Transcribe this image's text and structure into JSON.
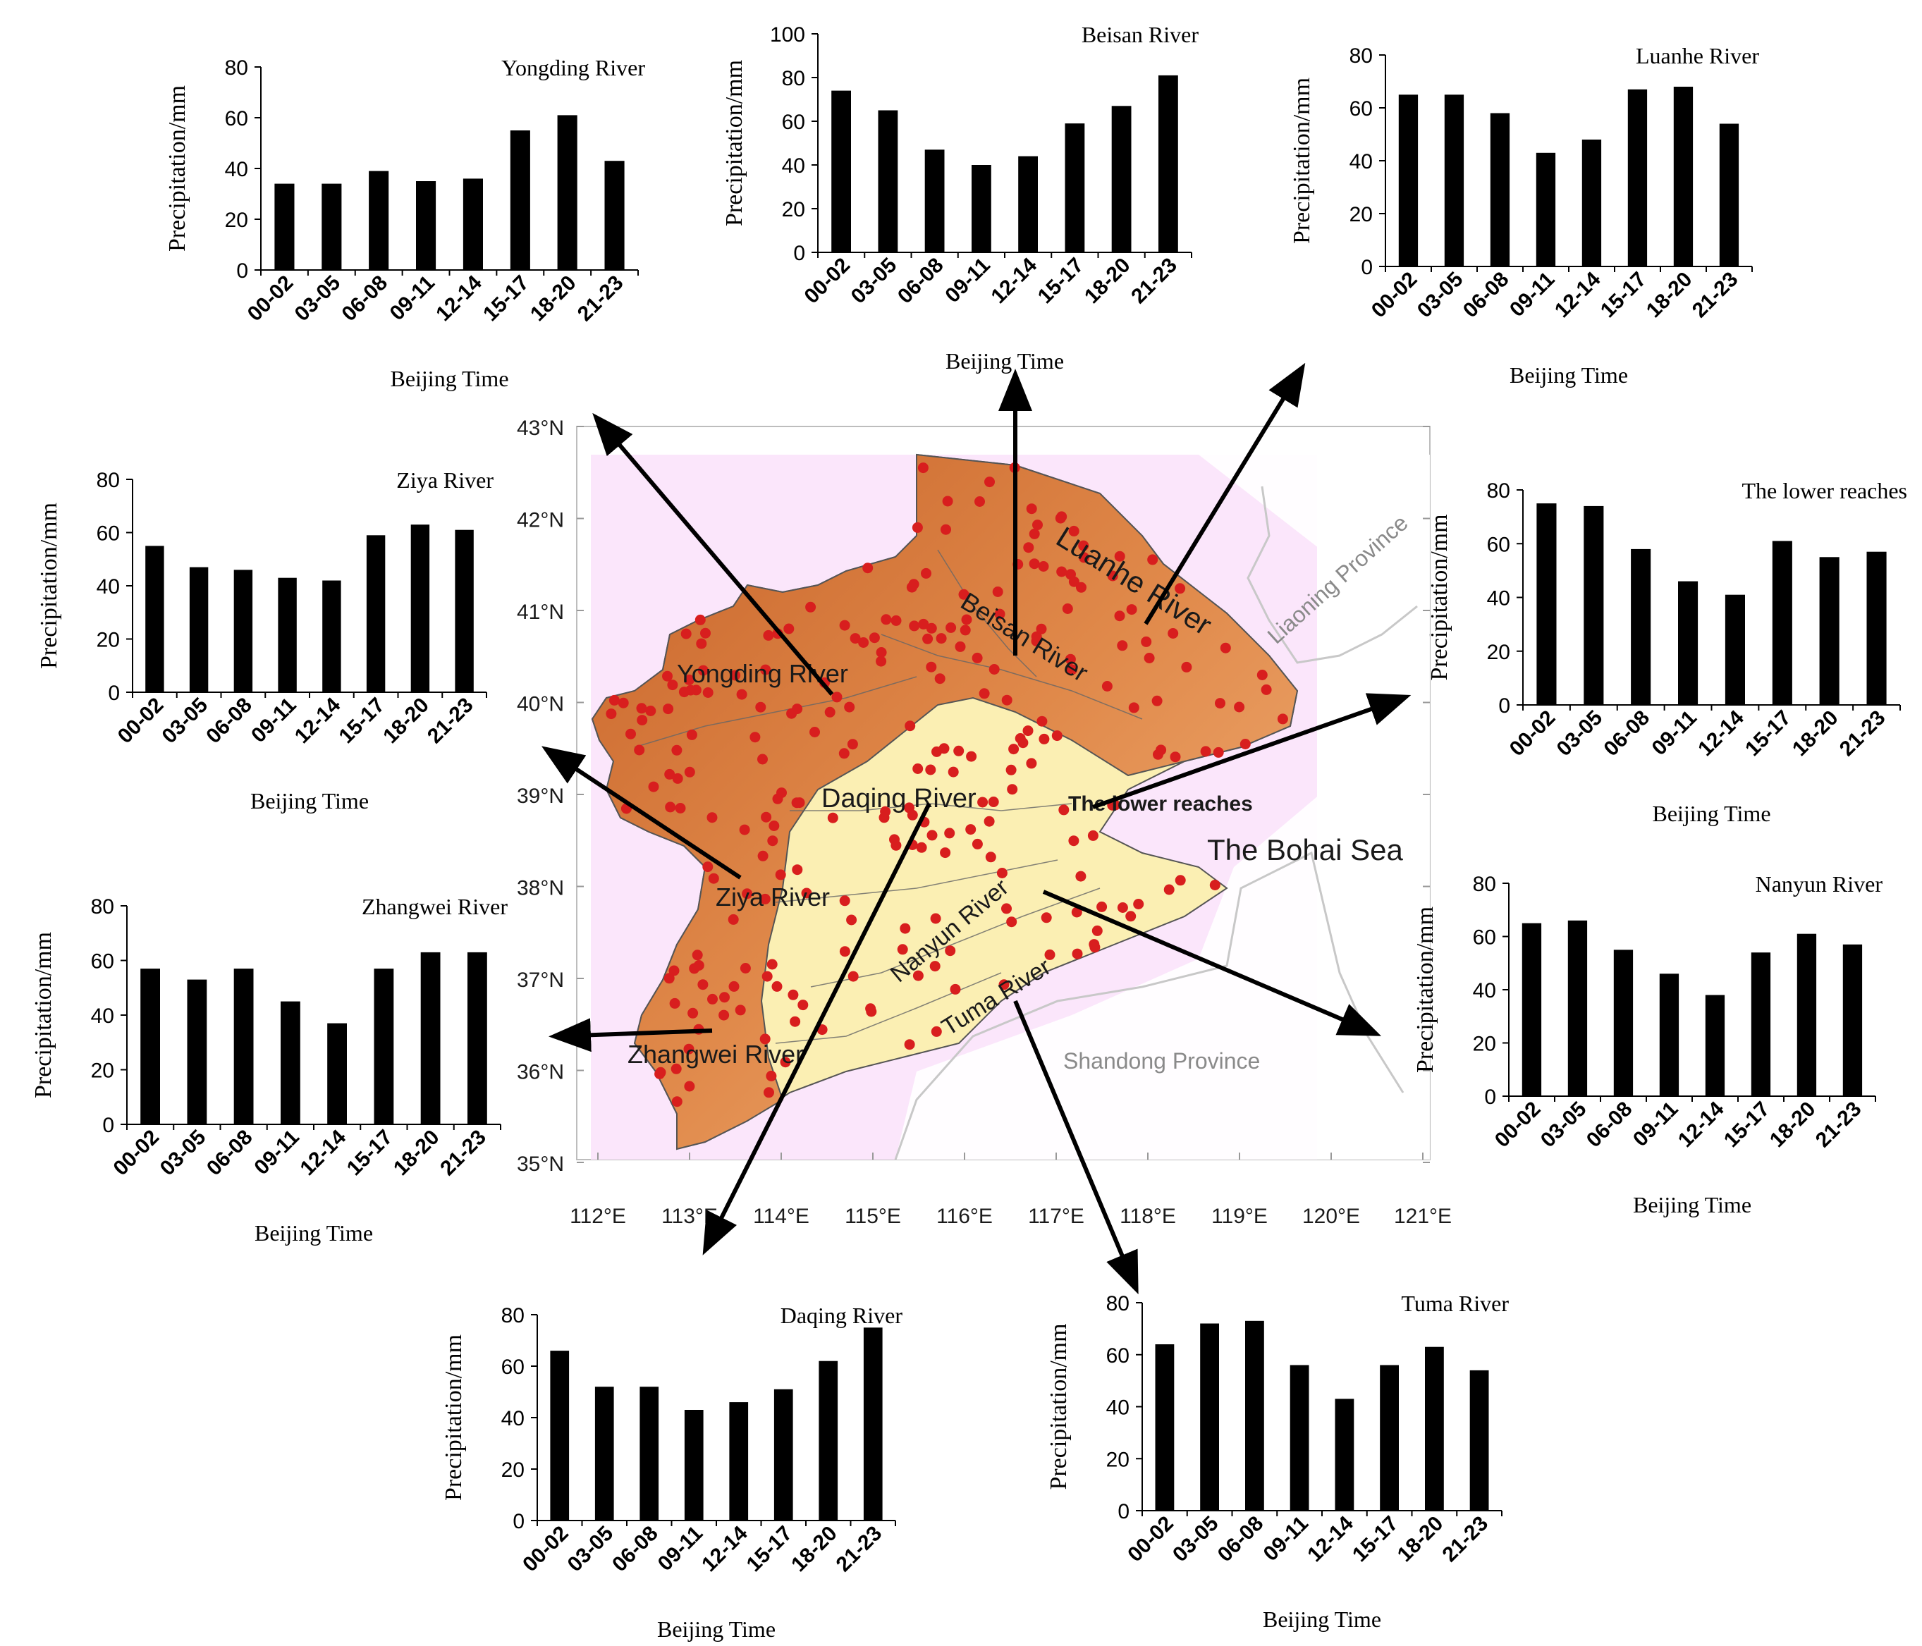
{
  "common": {
    "xlabel": "Beijing Time",
    "ylabel": "Precipitation/mm",
    "categories": [
      "00-02",
      "03-05",
      "06-08",
      "09-11",
      "12-14",
      "15-17",
      "18-20",
      "21-23"
    ]
  },
  "chart_data": [
    {
      "id": "yongding",
      "type": "bar",
      "title": "Yongding River",
      "xlabel": "Beijing Time",
      "ylabel": "Precipitation/mm",
      "categories": [
        "00-02",
        "03-05",
        "06-08",
        "09-11",
        "12-14",
        "15-17",
        "18-20",
        "21-23"
      ],
      "values": [
        34,
        34,
        39,
        35,
        36,
        55,
        61,
        43
      ],
      "ylim": [
        0,
        80
      ],
      "yticks": [
        0,
        20,
        40,
        60,
        80
      ]
    },
    {
      "id": "beisan",
      "type": "bar",
      "title": "Beisan River",
      "xlabel": "Beijing Time",
      "ylabel": "Precipitation/mm",
      "categories": [
        "00-02",
        "03-05",
        "06-08",
        "09-11",
        "12-14",
        "15-17",
        "18-20",
        "21-23"
      ],
      "values": [
        74,
        65,
        47,
        40,
        44,
        59,
        67,
        81
      ],
      "ylim": [
        0,
        100
      ],
      "yticks": [
        0,
        20,
        40,
        60,
        80,
        100
      ]
    },
    {
      "id": "luanhe",
      "type": "bar",
      "title": "Luanhe River",
      "xlabel": "Beijing Time",
      "ylabel": "Precipitation/mm",
      "categories": [
        "00-02",
        "03-05",
        "06-08",
        "09-11",
        "12-14",
        "15-17",
        "18-20",
        "21-23"
      ],
      "values": [
        65,
        65,
        58,
        43,
        48,
        67,
        68,
        54
      ],
      "ylim": [
        0,
        80
      ],
      "yticks": [
        0,
        20,
        40,
        60,
        80
      ]
    },
    {
      "id": "ziya",
      "type": "bar",
      "title": "Ziya River",
      "xlabel": "Beijing Time",
      "ylabel": "Precipitation/mm",
      "categories": [
        "00-02",
        "03-05",
        "06-08",
        "09-11",
        "12-14",
        "15-17",
        "18-20",
        "21-23"
      ],
      "values": [
        55,
        47,
        46,
        43,
        42,
        59,
        63,
        61
      ],
      "ylim": [
        0,
        80
      ],
      "yticks": [
        0,
        20,
        40,
        60,
        80
      ]
    },
    {
      "id": "lower",
      "type": "bar",
      "title": "The lower reaches",
      "xlabel": "Beijing Time",
      "ylabel": "Precipitation/mm",
      "categories": [
        "00-02",
        "03-05",
        "06-08",
        "09-11",
        "12-14",
        "15-17",
        "18-20",
        "21-23"
      ],
      "values": [
        75,
        74,
        58,
        46,
        41,
        61,
        55,
        57
      ],
      "ylim": [
        0,
        80
      ],
      "yticks": [
        0,
        20,
        40,
        60,
        80
      ]
    },
    {
      "id": "zhangwei",
      "type": "bar",
      "title": "Zhangwei River",
      "xlabel": "Beijing Time",
      "ylabel": "Precipitation/mm",
      "categories": [
        "00-02",
        "03-05",
        "06-08",
        "09-11",
        "12-14",
        "15-17",
        "18-20",
        "21-23"
      ],
      "values": [
        57,
        53,
        57,
        45,
        37,
        57,
        63,
        63
      ],
      "ylim": [
        0,
        80
      ],
      "yticks": [
        0,
        20,
        40,
        60,
        80
      ]
    },
    {
      "id": "nanyun",
      "type": "bar",
      "title": "Nanyun River",
      "xlabel": "Beijing Time",
      "ylabel": "Precipitation/mm",
      "categories": [
        "00-02",
        "03-05",
        "06-08",
        "09-11",
        "12-14",
        "15-17",
        "18-20",
        "21-23"
      ],
      "values": [
        65,
        66,
        55,
        46,
        38,
        54,
        61,
        57
      ],
      "ylim": [
        0,
        80
      ],
      "yticks": [
        0,
        20,
        40,
        60,
        80
      ]
    },
    {
      "id": "daqing",
      "type": "bar",
      "title": "Daqing River",
      "xlabel": "Beijing Time",
      "ylabel": "Precipitation/mm",
      "categories": [
        "00-02",
        "03-05",
        "06-08",
        "09-11",
        "12-14",
        "15-17",
        "18-20",
        "21-23"
      ],
      "values": [
        66,
        52,
        52,
        43,
        46,
        51,
        62,
        75
      ],
      "ylim": [
        0,
        80
      ],
      "yticks": [
        0,
        20,
        40,
        60,
        80
      ]
    },
    {
      "id": "tuma",
      "type": "bar",
      "title": "Tuma River",
      "xlabel": "Beijing Time",
      "ylabel": "Precipitation/mm",
      "categories": [
        "00-02",
        "03-05",
        "06-08",
        "09-11",
        "12-14",
        "15-17",
        "18-20",
        "21-23"
      ],
      "values": [
        64,
        72,
        73,
        56,
        43,
        56,
        63,
        54
      ],
      "ylim": [
        0,
        80
      ],
      "yticks": [
        0,
        20,
        40,
        60,
        80
      ]
    }
  ],
  "map": {
    "lat_labels": [
      "43°N",
      "42°N",
      "41°N",
      "40°N",
      "39°N",
      "38°N",
      "37°N",
      "36°N",
      "35°N"
    ],
    "lon_labels": [
      "112°E",
      "113°E",
      "114°E",
      "115°E",
      "116°E",
      "117°E",
      "118°E",
      "119°E",
      "120°E",
      "121°E"
    ],
    "region_labels": {
      "yongding": "Yongding River",
      "beisan": "Beisan River",
      "luanhe": "Luanhe River",
      "daqing": "Daqing River",
      "lower": "The lower reaches",
      "ziya": "Ziya River",
      "nanyun": "Nanyun River",
      "tuma": "Tuma River",
      "zhangwei": "Zhangwei River",
      "bohai": "The Bohai Sea",
      "liaoning": "Liaoning Province",
      "shandong": "Shandong Province"
    }
  },
  "colors": {
    "bar": "#000000",
    "station": "#d81e1e",
    "mountain": "#d97a3c",
    "plain": "#fbefb3",
    "map_background": "#fbe6fb",
    "province_border": "#c8c8c8"
  }
}
